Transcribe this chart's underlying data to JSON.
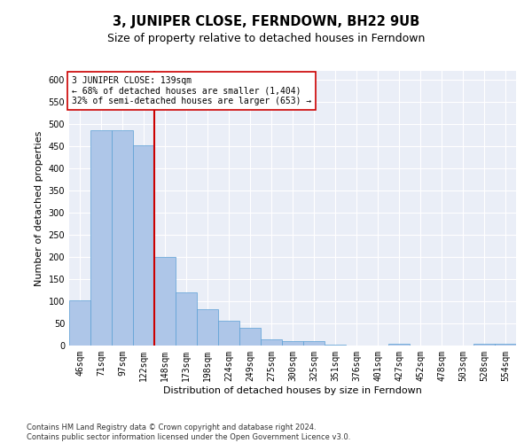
{
  "title": "3, JUNIPER CLOSE, FERNDOWN, BH22 9UB",
  "subtitle": "Size of property relative to detached houses in Ferndown",
  "xlabel": "Distribution of detached houses by size in Ferndown",
  "ylabel": "Number of detached properties",
  "categories": [
    "46sqm",
    "71sqm",
    "97sqm",
    "122sqm",
    "148sqm",
    "173sqm",
    "198sqm",
    "224sqm",
    "249sqm",
    "275sqm",
    "300sqm",
    "325sqm",
    "351sqm",
    "376sqm",
    "401sqm",
    "427sqm",
    "452sqm",
    "478sqm",
    "503sqm",
    "528sqm",
    "554sqm"
  ],
  "values": [
    103,
    487,
    487,
    452,
    200,
    120,
    82,
    57,
    41,
    15,
    10,
    10,
    2,
    0,
    0,
    5,
    0,
    0,
    0,
    5,
    5
  ],
  "bar_color": "#aec6e8",
  "bar_edge_color": "#5a9fd4",
  "vline_x_index": 3.5,
  "vline_color": "#cc0000",
  "annotation_line1": "3 JUNIPER CLOSE: 139sqm",
  "annotation_line2": "← 68% of detached houses are smaller (1,404)",
  "annotation_line3": "32% of semi-detached houses are larger (653) →",
  "annotation_box_color": "#ffffff",
  "annotation_box_edge": "#cc0000",
  "ylim": [
    0,
    620
  ],
  "yticks": [
    0,
    50,
    100,
    150,
    200,
    250,
    300,
    350,
    400,
    450,
    500,
    550,
    600
  ],
  "bg_color": "#eaeef7",
  "grid_color": "#ffffff",
  "footer": "Contains HM Land Registry data © Crown copyright and database right 2024.\nContains public sector information licensed under the Open Government Licence v3.0.",
  "title_fontsize": 10.5,
  "subtitle_fontsize": 9,
  "label_fontsize": 8,
  "tick_fontsize": 7,
  "annot_fontsize": 7,
  "footer_fontsize": 6
}
